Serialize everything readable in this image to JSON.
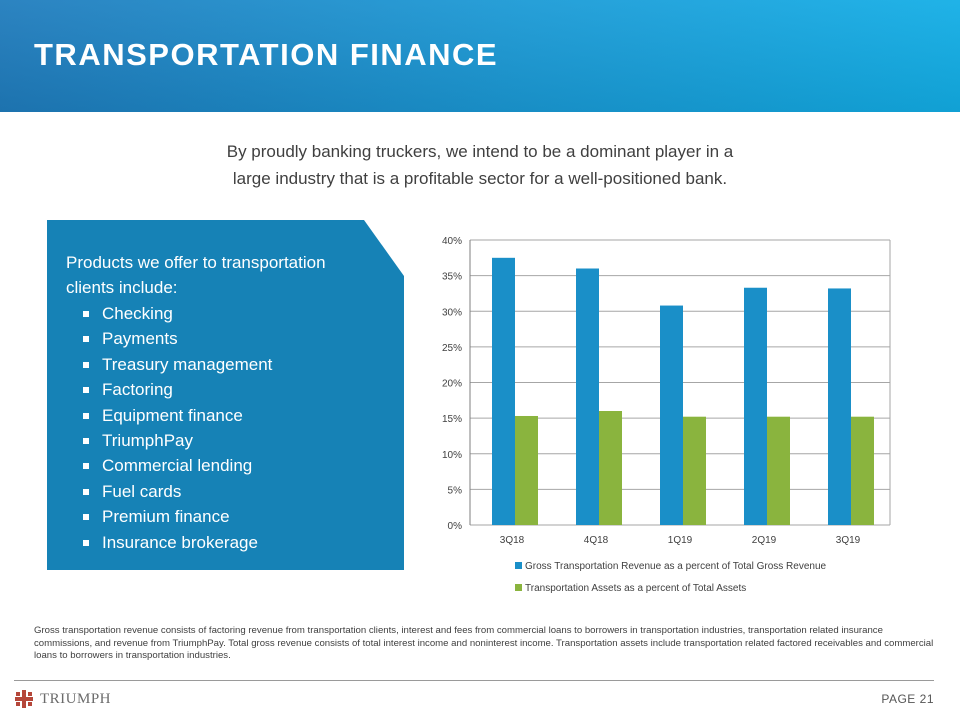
{
  "header": {
    "title": "TRANSPORTATION  FINANCE"
  },
  "intro": {
    "line1": "By proudly banking truckers, we intend to be a dominant player in a",
    "line2": "large industry that is a profitable sector for a well-positioned bank."
  },
  "products": {
    "heading": "Products we offer to transportation clients include:",
    "items": [
      "Checking",
      "Payments",
      "Treasury management",
      "Factoring",
      "Equipment finance",
      "TriumphPay",
      "Commercial lending",
      "Fuel cards",
      "Premium finance",
      "Insurance brokerage"
    ]
  },
  "chart_data": {
    "type": "bar",
    "title": "",
    "xlabel": "",
    "ylabel": "",
    "categories": [
      "3Q18",
      "4Q18",
      "1Q19",
      "2Q19",
      "3Q19"
    ],
    "series": [
      {
        "name": "Gross Transportation Revenue as a percent of Total Gross Revenue",
        "color": "#1a8fc8",
        "values": [
          37.5,
          36.0,
          30.8,
          33.3,
          33.2
        ]
      },
      {
        "name": "Transportation Assets as a percent of Total Assets",
        "color": "#8ab43e",
        "values": [
          15.3,
          16.0,
          15.2,
          15.2,
          15.2
        ]
      }
    ],
    "ylim": [
      0,
      40
    ],
    "yticks": [
      0,
      5,
      10,
      15,
      20,
      25,
      30,
      35,
      40
    ],
    "ytick_labels": [
      "0%",
      "5%",
      "10%",
      "15%",
      "20%",
      "25%",
      "30%",
      "35%",
      "40%"
    ],
    "grid": true,
    "legend_position": "bottom"
  },
  "footnote": "Gross transportation revenue consists of factoring revenue from transportation clients, interest and fees from commercial loans to borrowers in transportation industries, transportation related insurance commissions, and revenue from TriumphPay.  Total gross revenue consists of total interest income and noninterest income. Transportation assets include transportation related factored receivables and commercial loans to borrowers in transportation industries.",
  "footer": {
    "logo_text": "TRIUMPH",
    "page_label": "PAGE 21"
  },
  "colors": {
    "banner": "#1a9ad6",
    "box": "#1682b6",
    "series1": "#1a8fc8",
    "series2": "#8ab43e",
    "logo_red": "#b5473a"
  }
}
